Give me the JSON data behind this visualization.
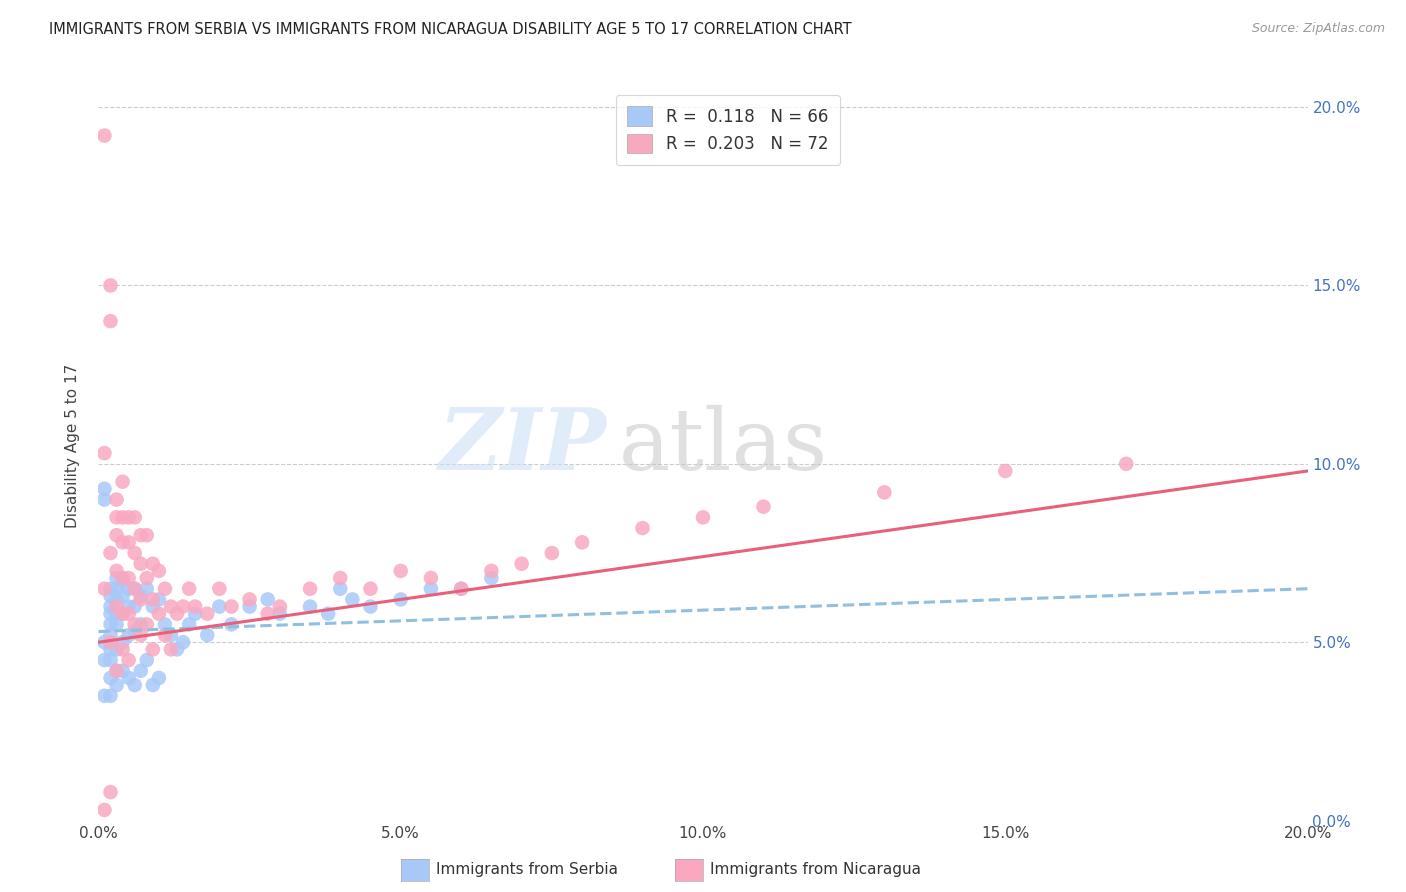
{
  "title": "IMMIGRANTS FROM SERBIA VS IMMIGRANTS FROM NICARAGUA DISABILITY AGE 5 TO 17 CORRELATION CHART",
  "source": "Source: ZipAtlas.com",
  "ylabel": "Disability Age 5 to 17",
  "xlim": [
    0.0,
    0.2
  ],
  "ylim": [
    0.0,
    0.21
  ],
  "ytick_labels": [
    "0.0%",
    "5.0%",
    "10.0%",
    "15.0%",
    "20.0%"
  ],
  "ytick_vals": [
    0.0,
    0.05,
    0.1,
    0.15,
    0.2
  ],
  "xtick_labels": [
    "0.0%",
    "5.0%",
    "10.0%",
    "15.0%",
    "20.0%"
  ],
  "xtick_vals": [
    0.0,
    0.05,
    0.1,
    0.15,
    0.2
  ],
  "serbia_R": 0.118,
  "serbia_N": 66,
  "nicaragua_R": 0.203,
  "nicaragua_N": 72,
  "serbia_color": "#a8c8f8",
  "nicaragua_color": "#f9a8c0",
  "serbia_line_color": "#90bfe0",
  "nicaragua_line_color": "#e8607a",
  "serbia_x": [
    0.001,
    0.001,
    0.001,
    0.001,
    0.001,
    0.002,
    0.002,
    0.002,
    0.002,
    0.002,
    0.002,
    0.002,
    0.002,
    0.002,
    0.002,
    0.003,
    0.003,
    0.003,
    0.003,
    0.003,
    0.003,
    0.003,
    0.003,
    0.004,
    0.004,
    0.004,
    0.004,
    0.004,
    0.005,
    0.005,
    0.005,
    0.005,
    0.006,
    0.006,
    0.006,
    0.006,
    0.007,
    0.007,
    0.007,
    0.008,
    0.008,
    0.009,
    0.009,
    0.01,
    0.01,
    0.011,
    0.012,
    0.013,
    0.014,
    0.015,
    0.016,
    0.018,
    0.02,
    0.022,
    0.025,
    0.028,
    0.03,
    0.035,
    0.038,
    0.04,
    0.042,
    0.045,
    0.05,
    0.055,
    0.06,
    0.065
  ],
  "serbia_y": [
    0.09,
    0.093,
    0.05,
    0.045,
    0.035,
    0.065,
    0.063,
    0.06,
    0.058,
    0.055,
    0.052,
    0.048,
    0.045,
    0.04,
    0.035,
    0.068,
    0.065,
    0.062,
    0.058,
    0.055,
    0.048,
    0.042,
    0.038,
    0.067,
    0.063,
    0.058,
    0.05,
    0.042,
    0.065,
    0.06,
    0.052,
    0.04,
    0.065,
    0.06,
    0.053,
    0.038,
    0.063,
    0.055,
    0.042,
    0.065,
    0.045,
    0.06,
    0.038,
    0.062,
    0.04,
    0.055,
    0.052,
    0.048,
    0.05,
    0.055,
    0.058,
    0.052,
    0.06,
    0.055,
    0.06,
    0.062,
    0.058,
    0.06,
    0.058,
    0.065,
    0.062,
    0.06,
    0.062,
    0.065,
    0.065,
    0.068
  ],
  "nicaragua_x": [
    0.001,
    0.001,
    0.001,
    0.001,
    0.002,
    0.002,
    0.002,
    0.002,
    0.002,
    0.003,
    0.003,
    0.003,
    0.003,
    0.003,
    0.003,
    0.004,
    0.004,
    0.004,
    0.004,
    0.004,
    0.004,
    0.005,
    0.005,
    0.005,
    0.005,
    0.005,
    0.006,
    0.006,
    0.006,
    0.006,
    0.007,
    0.007,
    0.007,
    0.007,
    0.008,
    0.008,
    0.008,
    0.009,
    0.009,
    0.009,
    0.01,
    0.01,
    0.011,
    0.011,
    0.012,
    0.012,
    0.013,
    0.014,
    0.015,
    0.016,
    0.018,
    0.02,
    0.022,
    0.025,
    0.028,
    0.03,
    0.035,
    0.04,
    0.045,
    0.05,
    0.055,
    0.06,
    0.065,
    0.07,
    0.075,
    0.08,
    0.09,
    0.1,
    0.11,
    0.13,
    0.15,
    0.17
  ],
  "nicaragua_y": [
    0.192,
    0.103,
    0.065,
    0.003,
    0.15,
    0.14,
    0.075,
    0.05,
    0.008,
    0.09,
    0.085,
    0.08,
    0.07,
    0.06,
    0.042,
    0.095,
    0.085,
    0.078,
    0.068,
    0.058,
    0.048,
    0.085,
    0.078,
    0.068,
    0.058,
    0.045,
    0.085,
    0.075,
    0.065,
    0.055,
    0.08,
    0.072,
    0.062,
    0.052,
    0.08,
    0.068,
    0.055,
    0.072,
    0.062,
    0.048,
    0.07,
    0.058,
    0.065,
    0.052,
    0.06,
    0.048,
    0.058,
    0.06,
    0.065,
    0.06,
    0.058,
    0.065,
    0.06,
    0.062,
    0.058,
    0.06,
    0.065,
    0.068,
    0.065,
    0.07,
    0.068,
    0.065,
    0.07,
    0.072,
    0.075,
    0.078,
    0.082,
    0.085,
    0.088,
    0.092,
    0.098,
    0.1
  ],
  "serbia_line_x": [
    0.0,
    0.2
  ],
  "serbia_line_y": [
    0.053,
    0.065
  ],
  "nicaragua_line_x": [
    0.0,
    0.2
  ],
  "nicaragua_line_y": [
    0.05,
    0.098
  ]
}
